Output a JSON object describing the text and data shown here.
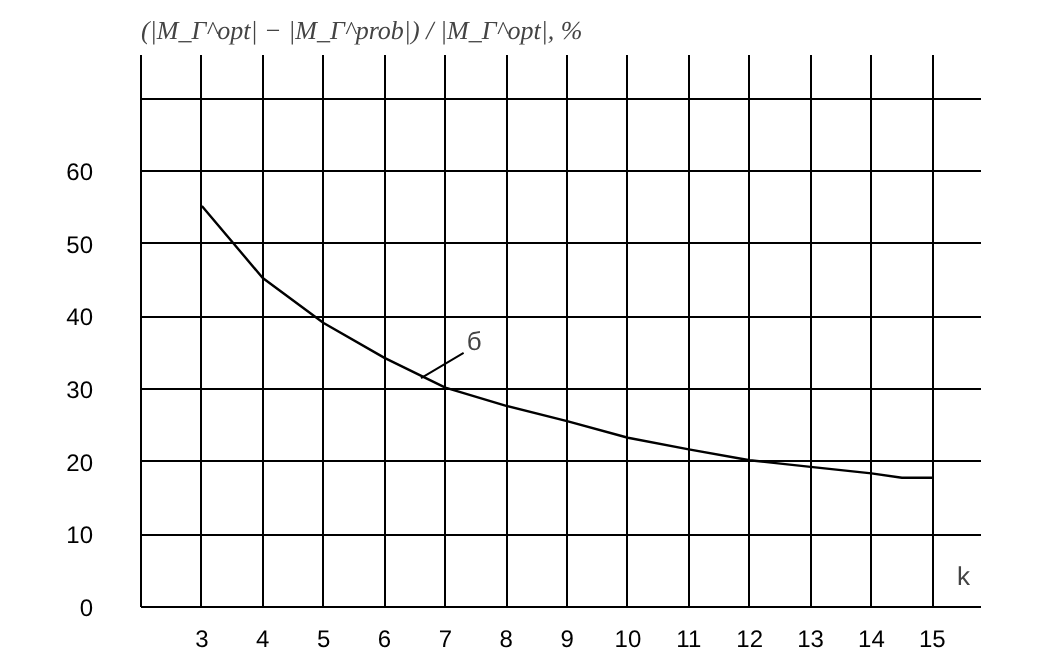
{
  "chart_data": {
    "type": "line",
    "ylabel": "(|M_Γ^opt| − |M_Γ^prob|) / |M_Γ^opt|, %",
    "xlabel": "k",
    "x": [
      3,
      4,
      5,
      6,
      7,
      8,
      9,
      10,
      11,
      12,
      13,
      14,
      14.5,
      15
    ],
    "series": [
      {
        "color": "#000000",
        "values": [
          55.2,
          45.3,
          39.1,
          34.3,
          30.2,
          27.7,
          25.6,
          23.3,
          21.7,
          20.2,
          19.3,
          18.4,
          17.8,
          17.8
        ]
      }
    ],
    "xlim": [
      2,
      15.8
    ],
    "xticks": [
      3,
      4,
      5,
      6,
      7,
      8,
      9,
      10,
      11,
      12,
      13,
      14,
      15
    ],
    "ylim": [
      0,
      76
    ],
    "yticks": [
      0,
      10,
      20,
      30,
      40,
      50,
      60,
      {
        "value": 70,
        "label": null
      }
    ],
    "grid": true,
    "annotations": [
      {
        "text": "б",
        "x": 6.6,
        "y": 31.5
      }
    ]
  }
}
